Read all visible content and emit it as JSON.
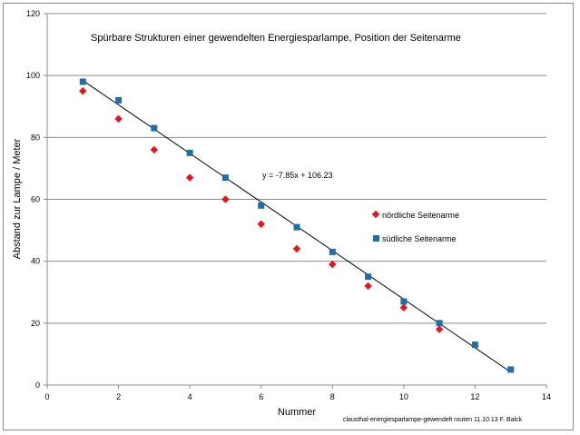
{
  "chart_data": {
    "type": "scatter",
    "title": "Spürbare Strukturen einer gewendelten Energiesparlampe, Position der Seitenarme",
    "xlabel": "Nummer",
    "ylabel": "Abstand zur Lampe / Meter",
    "xlim": [
      0,
      14
    ],
    "ylim": [
      0,
      120
    ],
    "xticks": [
      0,
      2,
      4,
      6,
      8,
      10,
      12,
      14
    ],
    "yticks": [
      0,
      20,
      40,
      60,
      80,
      100,
      120
    ],
    "grid": "horizontal",
    "legend_position": "right",
    "series": [
      {
        "name": "nördliche Seitenarme",
        "marker": "diamond",
        "color": "#e8141b",
        "x": [
          1,
          2,
          3,
          4,
          5,
          6,
          7,
          8,
          9,
          10,
          11
        ],
        "y": [
          95,
          86,
          76,
          67,
          60,
          52,
          44,
          39,
          32,
          25,
          18
        ]
      },
      {
        "name": "südliche Seitenarme",
        "marker": "square",
        "color": "#1f6ea6",
        "x": [
          1,
          2,
          3,
          4,
          5,
          6,
          7,
          8,
          9,
          10,
          11,
          12,
          13
        ],
        "y": [
          98,
          92,
          83,
          75,
          67,
          58,
          51,
          43,
          35,
          27,
          20,
          13,
          5
        ]
      }
    ],
    "trendline": {
      "slope": -7.85,
      "intercept": 106.23,
      "x_from": 1,
      "x_to": 13,
      "equation_label": "y = -7.85x + 106.23"
    },
    "footnote": "clausthal-energiesparlampe-gewendelt   routen 11.10.13 F. Balck"
  }
}
